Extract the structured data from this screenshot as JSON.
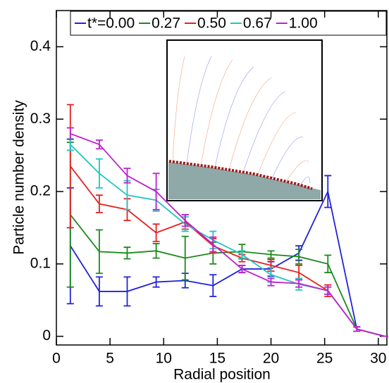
{
  "chart_data": {
    "type": "line",
    "xlabel": "Radial position",
    "ylabel": "Particle number density",
    "x": [
      1.3,
      4,
      6.6,
      9.3,
      12,
      14.6,
      17.3,
      20,
      22.6,
      25.3,
      28,
      30.6
    ],
    "xlim": [
      0,
      30.8
    ],
    "xticks": [
      0,
      5,
      10,
      15,
      20,
      25,
      30
    ],
    "ylim": [
      -0.012,
      0.45
    ],
    "yticks": [
      0,
      0.1,
      0.2,
      0.3,
      0.4
    ],
    "series": [
      {
        "name": "t*=0.00",
        "color": "#2222dd",
        "values": [
          0.125,
          0.062,
          0.062,
          0.075,
          0.077,
          0.07,
          0.093,
          0.093,
          0.115,
          0.2,
          0.01,
          0.0
        ],
        "errors": [
          0.08,
          0.02,
          0.02,
          0.007,
          0.01,
          0.015,
          0.005,
          0.01,
          0.01,
          0.022,
          0.003,
          0
        ]
      },
      {
        "name": "0.27",
        "color": "#1a8a1a",
        "values": [
          0.168,
          0.117,
          0.115,
          0.118,
          0.108,
          0.115,
          0.117,
          0.113,
          0.11,
          0.1,
          0.01,
          0.0
        ],
        "errors": [
          0.1,
          0.03,
          0.008,
          0.01,
          0.03,
          0.015,
          0.01,
          0.005,
          0.01,
          0.012,
          0.003,
          0
        ]
      },
      {
        "name": "0.50",
        "color": "#e82020",
        "values": [
          0.235,
          0.183,
          0.175,
          0.143,
          0.158,
          0.125,
          0.108,
          0.098,
          0.088,
          0.063,
          0.01,
          0.0
        ],
        "errors": [
          0.085,
          0.012,
          0.015,
          0.012,
          0.01,
          0.01,
          0.005,
          0.008,
          0.01,
          0.008,
          0.003,
          0
        ]
      },
      {
        "name": "0.67",
        "color": "#22c4c4",
        "values": [
          0.265,
          0.225,
          0.195,
          0.188,
          0.155,
          0.133,
          0.113,
          0.085,
          0.072,
          0.063,
          0.01,
          0.0
        ],
        "errors": [
          0.008,
          0.02,
          0.02,
          0.015,
          0.01,
          0.012,
          0.005,
          0.01,
          0.008,
          0.005,
          0.003,
          0
        ]
      },
      {
        "name": "1.00",
        "color": "#c020d0",
        "values": [
          0.28,
          0.265,
          0.222,
          0.2,
          0.16,
          0.127,
          0.093,
          0.075,
          0.073,
          0.063,
          0.01,
          0.0
        ],
        "errors": [
          0.008,
          0.006,
          0.01,
          0.025,
          0.008,
          0.01,
          0.005,
          0.005,
          0.005,
          0.005,
          0.003,
          0
        ]
      }
    ]
  }
}
